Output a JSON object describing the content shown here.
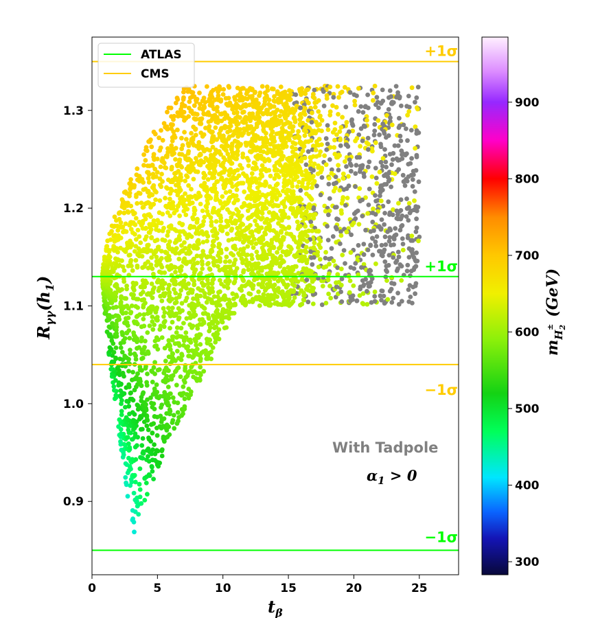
{
  "chart_data": {
    "type": "scatter",
    "xlabel": "t",
    "xlabel_sub": "β",
    "ylabel": "R",
    "ylabel_sub": "γγ",
    "ylabel_arg": "(h",
    "ylabel_arg_sub": "1",
    "ylabel_close": ")",
    "xlim": [
      0,
      28
    ],
    "ylim": [
      0.825,
      1.375
    ],
    "x_ticks": [
      0,
      5,
      10,
      15,
      20,
      25
    ],
    "x_tick_labels": [
      "0",
      "5",
      "10",
      "15",
      "20",
      "25"
    ],
    "y_ticks": [
      0.9,
      1.0,
      1.1,
      1.2,
      1.3
    ],
    "y_tick_labels": [
      "0.9",
      "1.0",
      "1.1",
      "1.2",
      "1.3"
    ],
    "grid": false,
    "colorbar": {
      "label": "m",
      "label_sub": "H",
      "label_subsub": "2",
      "label_sup": "±",
      "label_unit": "(GeV)",
      "range": [
        283,
        985
      ],
      "ticks": [
        300,
        400,
        500,
        600,
        700,
        800,
        900
      ],
      "tick_labels": [
        "300",
        "400",
        "500",
        "600",
        "700",
        "800",
        "900"
      ],
      "colormap": [
        "#08083a",
        "#1414b4",
        "#0a64ff",
        "#00e6ff",
        "#00ff5a",
        "#14d214",
        "#8cf00a",
        "#f0f000",
        "#ffc800",
        "#ff8c00",
        "#ff0000",
        "#ff00c8",
        "#9628ff",
        "#dc8cff",
        "#fff0ff"
      ],
      "colormap_values": [
        283,
        330,
        365,
        410,
        470,
        520,
        590,
        650,
        700,
        750,
        800,
        850,
        900,
        940,
        985
      ]
    },
    "reference_lines": [
      {
        "name": "ATLAS",
        "color": "#00ff00",
        "values": [
          1.13,
          0.85
        ],
        "labels": [
          "+1σ",
          "−1σ"
        ]
      },
      {
        "name": "CMS",
        "color": "#ffcc00",
        "values": [
          1.35,
          1.04
        ],
        "labels": [
          "+1σ",
          "−1σ"
        ]
      }
    ],
    "legend": {
      "placement": "top-left",
      "entries": [
        "ATLAS",
        "CMS"
      ]
    },
    "excluded_color": "#808080",
    "annotations": {
      "tadpole": "With Tadpole",
      "alpha_sym": "α",
      "alpha_sub": "1",
      "alpha_rel": " > 0"
    },
    "region": {
      "x_start": 0.8,
      "x_end": 25,
      "y_top": 1.325,
      "y_apex": 1.13,
      "y_min_point": [
        3.2,
        0.865
      ],
      "gray_region_x_min": 15,
      "gray_region_y_min": 1.04
    }
  }
}
